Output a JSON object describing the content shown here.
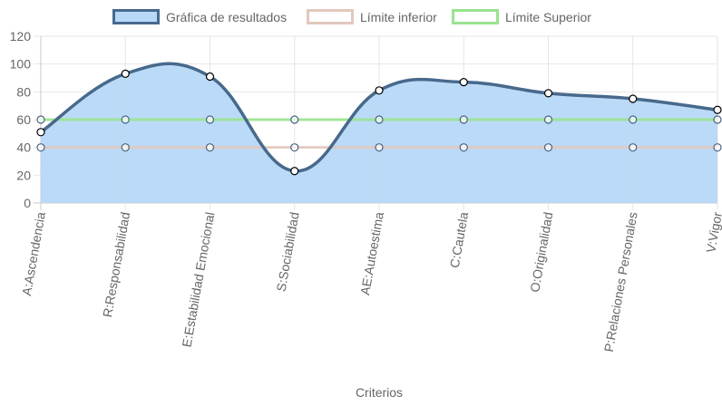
{
  "chart_data": {
    "type": "line",
    "categories": [
      "A:Ascendencia",
      "R:Responsabilidad",
      "E:Estabilidad Emocional",
      "S:Sociabilidad",
      "AE:Autoestima",
      "C:Cautela",
      "O:Originalidad",
      "P:Relaciones Personales",
      "V:Vigor"
    ],
    "series": [
      {
        "name": "Gráfica de resultados",
        "values": [
          51,
          93,
          91,
          23,
          81,
          87,
          79,
          75,
          67
        ],
        "line_color": "#47698c",
        "fill_color": "#b7d8f7",
        "fill": true,
        "smooth": true
      },
      {
        "name": "Límite inferior",
        "values": [
          40,
          40,
          40,
          40,
          40,
          40,
          40,
          40,
          40
        ],
        "line_color": "#e3c8bd",
        "fill": false,
        "smooth": false
      },
      {
        "name": "Límite Superior",
        "values": [
          60,
          60,
          60,
          60,
          60,
          60,
          60,
          60,
          60
        ],
        "line_color": "#99e38f",
        "fill": false,
        "smooth": false
      }
    ],
    "xlabel": "Criterios",
    "ylabel": "",
    "ylim": [
      0,
      120
    ],
    "yticks": [
      0,
      20,
      40,
      60,
      80,
      100,
      120
    ],
    "grid": true,
    "legend_position": "top-center"
  }
}
